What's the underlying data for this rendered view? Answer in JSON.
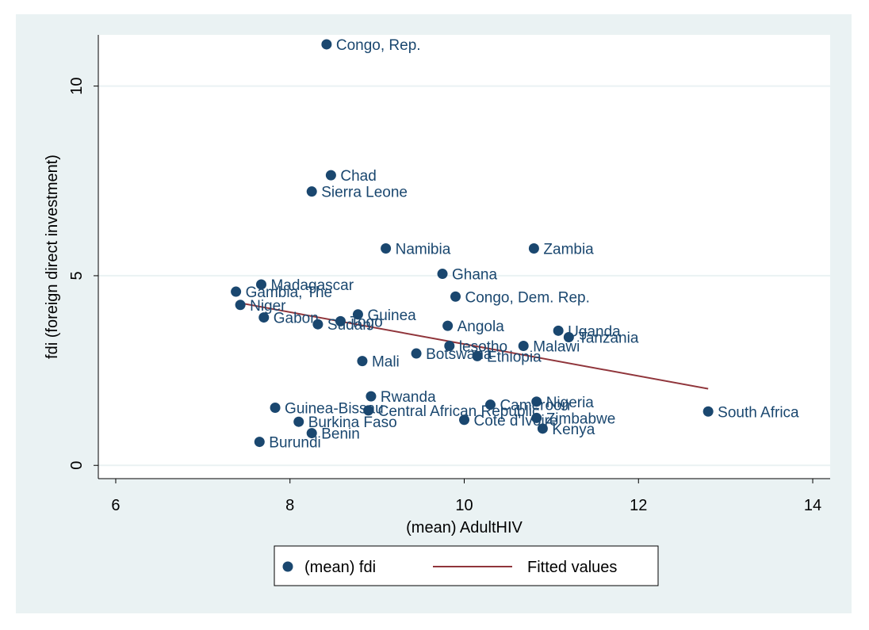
{
  "chart_data": {
    "type": "scatter",
    "title": "",
    "xlabel": "(mean) AdultHIV",
    "ylabel": "fdi (foreign direct investment)",
    "xlim": [
      5.8,
      14.2
    ],
    "ylim": [
      -0.35,
      11.35
    ],
    "x_ticks": [
      6,
      8,
      10,
      12,
      14
    ],
    "y_ticks": [
      0,
      5,
      10
    ],
    "grid": true,
    "colors": {
      "background": "#eaf2f3",
      "plot_area": "#ffffff",
      "grid": "#eaf2f3",
      "marker": "#1a476f",
      "fit_line": "#90353b",
      "axis": "#000000",
      "text": "#000000",
      "label_text": "#1a476f"
    },
    "series": [
      {
        "name": "(mean) fdi",
        "type": "scatter",
        "points": [
          {
            "label": "Congo, Rep.",
            "x": 8.42,
            "y": 11.1
          },
          {
            "label": "Chad",
            "x": 8.47,
            "y": 7.65
          },
          {
            "label": "Sierra Leone",
            "x": 8.25,
            "y": 7.22
          },
          {
            "label": "Namibia",
            "x": 9.1,
            "y": 5.72
          },
          {
            "label": "Zambia",
            "x": 10.8,
            "y": 5.72
          },
          {
            "label": "Ghana",
            "x": 9.75,
            "y": 5.05
          },
          {
            "label": "Madagascar",
            "x": 7.67,
            "y": 4.77
          },
          {
            "label": "Gambia, The",
            "x": 7.38,
            "y": 4.58
          },
          {
            "label": "Congo, Dem. Rep.",
            "x": 9.9,
            "y": 4.45
          },
          {
            "label": "Niger",
            "x": 7.43,
            "y": 4.23
          },
          {
            "label": "Guinea",
            "x": 8.78,
            "y": 3.98
          },
          {
            "label": "Gabon",
            "x": 7.7,
            "y": 3.9
          },
          {
            "label": "Togo",
            "x": 8.58,
            "y": 3.8
          },
          {
            "label": "Sudan",
            "x": 8.32,
            "y": 3.72
          },
          {
            "label": "Angola",
            "x": 9.81,
            "y": 3.68
          },
          {
            "label": "Uganda",
            "x": 11.08,
            "y": 3.55
          },
          {
            "label": "Tanzania",
            "x": 11.2,
            "y": 3.38
          },
          {
            "label": "lesotho",
            "x": 9.83,
            "y": 3.15
          },
          {
            "label": "Malawi",
            "x": 10.68,
            "y": 3.15
          },
          {
            "label": "Botswana",
            "x": 9.45,
            "y": 2.95
          },
          {
            "label": "Ethiopia",
            "x": 10.15,
            "y": 2.88
          },
          {
            "label": "Mali",
            "x": 8.83,
            "y": 2.75
          },
          {
            "label": "Rwanda",
            "x": 8.93,
            "y": 1.82
          },
          {
            "label": "Nigeria",
            "x": 10.83,
            "y": 1.68
          },
          {
            "label": "Cameroon",
            "x": 10.3,
            "y": 1.6
          },
          {
            "label": "Guinea-Bissau",
            "x": 7.83,
            "y": 1.52
          },
          {
            "label": "Central African Republic",
            "x": 8.9,
            "y": 1.45
          },
          {
            "label": "South Africa",
            "x": 12.8,
            "y": 1.42
          },
          {
            "label": "Zimbabwe",
            "x": 10.83,
            "y": 1.25
          },
          {
            "label": "Cote d'Ivoire",
            "x": 10.0,
            "y": 1.2
          },
          {
            "label": "Burkina Faso",
            "x": 8.1,
            "y": 1.15
          },
          {
            "label": "Kenya",
            "x": 10.9,
            "y": 0.97
          },
          {
            "label": "Benin",
            "x": 8.25,
            "y": 0.85
          },
          {
            "label": "Burundi",
            "x": 7.65,
            "y": 0.62
          }
        ]
      },
      {
        "name": "Fitted values",
        "type": "line",
        "x": [
          7.38,
          12.8
        ],
        "y": [
          4.3,
          2.02
        ]
      }
    ],
    "legend": {
      "position": "bottom-center",
      "entries": [
        "(mean) fdi",
        "Fitted values"
      ]
    }
  }
}
